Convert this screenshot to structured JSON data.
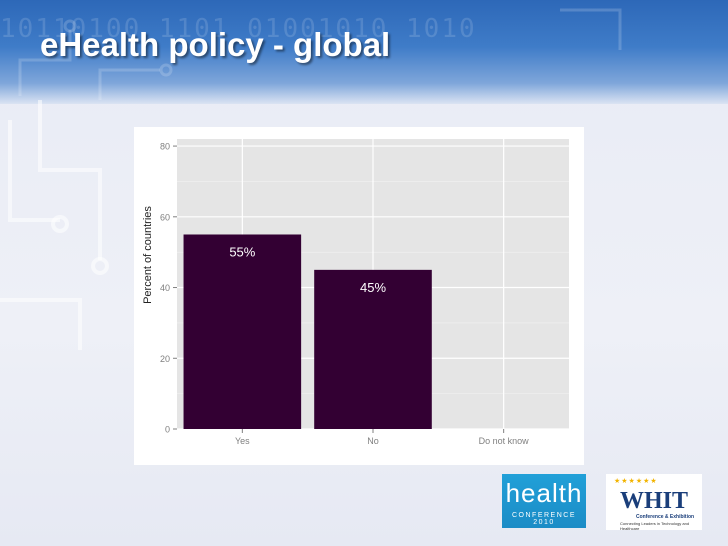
{
  "slide": {
    "title": "eHealth policy - global",
    "header_binary": "10110100 1101 01001010 1010"
  },
  "chart_data": {
    "type": "bar",
    "title": "",
    "xlabel": "",
    "ylabel": "Percent of countries",
    "categories": [
      "Yes",
      "No",
      "Do not know"
    ],
    "values": [
      55,
      45,
      0
    ],
    "data_labels": [
      "55%",
      "45%",
      ""
    ],
    "ylim": [
      0,
      82
    ],
    "yticks": [
      0,
      20,
      40,
      60,
      80
    ],
    "grid": true,
    "bar_color": "#330033",
    "panel_color": "#e5e5e5"
  },
  "logos": {
    "health_word": "health",
    "health_sub": "CONFERENCE 2010",
    "whit_word": "WHIT",
    "whit_line1": "Conference & Exhibition",
    "whit_line2": "Connecting Leaders in Technology and Healthcare"
  }
}
